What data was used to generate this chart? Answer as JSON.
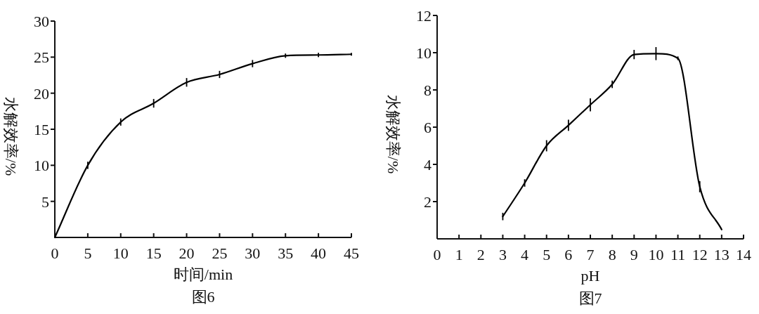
{
  "chart_data": [
    {
      "type": "line",
      "xlabel": "时间/min",
      "ylabel": "水解效率/%",
      "annotations": [
        "图6"
      ],
      "x": [
        0,
        5,
        10,
        15,
        20,
        25,
        30,
        35,
        40,
        45
      ],
      "series": [
        {
          "color": "#000000",
          "values": [
            0,
            10,
            16,
            18.6,
            21.5,
            22.6,
            24.1,
            25.2,
            25.3,
            25.4
          ],
          "errors": [
            null,
            0.5,
            0.5,
            0.6,
            0.6,
            0.5,
            0.5,
            0.3,
            0.3,
            0.2
          ]
        }
      ],
      "xlim": [
        0,
        45
      ],
      "ylim": [
        0,
        30
      ],
      "xticks": [
        0,
        5,
        10,
        15,
        20,
        25,
        30,
        35,
        40,
        45
      ],
      "yticks": [
        5,
        10,
        15,
        20,
        25,
        30
      ]
    },
    {
      "type": "line",
      "xlabel": "pH",
      "ylabel": "水解效率/%",
      "annotations": [
        "图7"
      ],
      "x": [
        3,
        4,
        5,
        6,
        7,
        8,
        9,
        10,
        11,
        12,
        13
      ],
      "series": [
        {
          "color": "#000000",
          "values": [
            1.2,
            3.0,
            5.0,
            6.1,
            7.2,
            8.3,
            9.9,
            9.95,
            9.7,
            2.8,
            0.5
          ],
          "errors": [
            0.2,
            0.2,
            0.3,
            0.3,
            0.35,
            0.2,
            0.25,
            0.35,
            0.1,
            0.3,
            null
          ]
        }
      ],
      "xlim": [
        0,
        14
      ],
      "ylim": [
        0,
        12
      ],
      "xticks": [
        0,
        1,
        2,
        3,
        4,
        5,
        6,
        7,
        8,
        9,
        10,
        11,
        12,
        13,
        14
      ],
      "yticks": [
        2,
        4,
        6,
        8,
        10,
        12
      ]
    }
  ]
}
